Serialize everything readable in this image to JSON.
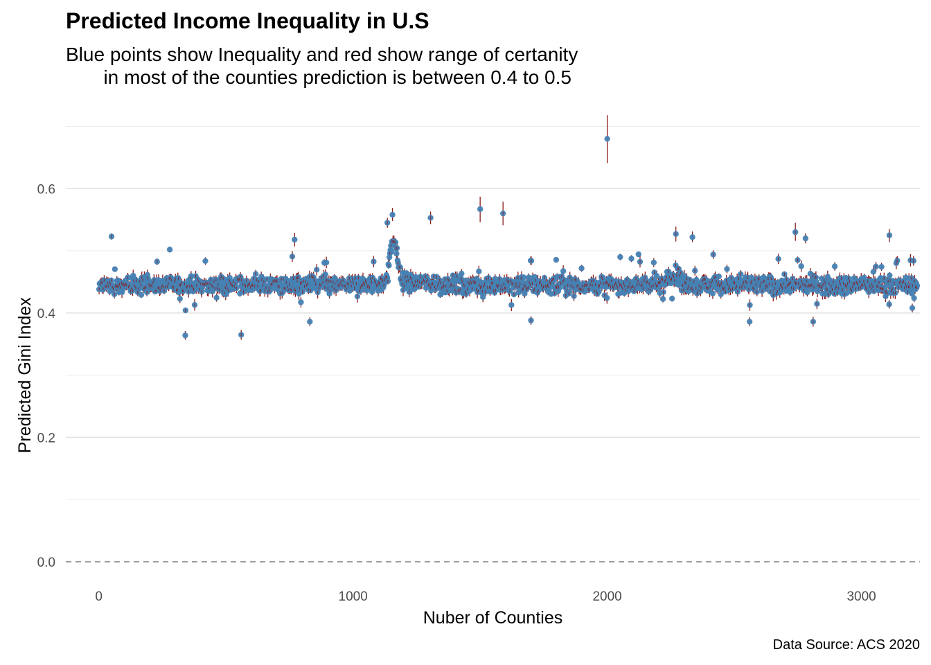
{
  "chart_data": {
    "type": "scatter",
    "title": "Predicted Income Inequality in U.S",
    "subtitle": "Blue points show Inequality and red show range of certanity\n       in most of the counties prediction is between 0.4 to 0.5",
    "caption": "Data Source: ACS 2020",
    "xlabel": "Nuber of Counties",
    "ylabel": "Predicted Gini Index",
    "xlim": [
      -130,
      3230
    ],
    "ylim": [
      -0.03,
      0.725
    ],
    "x_ticks": [
      0,
      1000,
      2000,
      3000
    ],
    "x_tick_labels": [
      "0",
      "1000",
      "2000",
      "3000"
    ],
    "y_ticks": [
      0.0,
      0.2,
      0.4,
      0.6
    ],
    "y_tick_labels": [
      "0.0",
      "0.2",
      "0.4",
      "0.6"
    ],
    "y_minor_ticks": [
      0.1,
      0.3,
      0.5,
      0.7
    ],
    "reference_line": {
      "y": 0.0,
      "style": "dashed"
    },
    "grid": true,
    "n_counties": 3220,
    "typical_range": [
      0.4,
      0.5
    ],
    "baseline_mean": 0.445,
    "point_color": "#4682b4",
    "interval_color": "#8b1a1a",
    "notable_points": [
      {
        "x": 50,
        "y": 0.523,
        "lo": 0.518,
        "hi": 0.528
      },
      {
        "x": 770,
        "y": 0.518,
        "lo": 0.507,
        "hi": 0.529
      },
      {
        "x": 1135,
        "y": 0.545,
        "lo": 0.537,
        "hi": 0.553
      },
      {
        "x": 1155,
        "y": 0.558,
        "lo": 0.548,
        "hi": 0.569
      },
      {
        "x": 1305,
        "y": 0.553,
        "lo": 0.543,
        "hi": 0.563
      },
      {
        "x": 1500,
        "y": 0.567,
        "lo": 0.546,
        "hi": 0.587
      },
      {
        "x": 1590,
        "y": 0.56,
        "lo": 0.541,
        "hi": 0.579
      },
      {
        "x": 2000,
        "y": 0.68,
        "lo": 0.641,
        "hi": 0.718
      },
      {
        "x": 2270,
        "y": 0.527,
        "lo": 0.515,
        "hi": 0.539
      },
      {
        "x": 2335,
        "y": 0.522,
        "lo": 0.514,
        "hi": 0.531
      },
      {
        "x": 2740,
        "y": 0.53,
        "lo": 0.516,
        "hi": 0.545
      },
      {
        "x": 2780,
        "y": 0.52,
        "lo": 0.512,
        "hi": 0.528
      },
      {
        "x": 3110,
        "y": 0.525,
        "lo": 0.514,
        "hi": 0.535
      },
      {
        "x": 340,
        "y": 0.364,
        "lo": 0.357,
        "hi": 0.371
      },
      {
        "x": 560,
        "y": 0.365,
        "lo": 0.357,
        "hi": 0.373
      },
      {
        "x": 830,
        "y": 0.386,
        "lo": 0.379,
        "hi": 0.393
      },
      {
        "x": 1700,
        "y": 0.388,
        "lo": 0.381,
        "hi": 0.395
      },
      {
        "x": 2560,
        "y": 0.386,
        "lo": 0.379,
        "hi": 0.393
      },
      {
        "x": 2810,
        "y": 0.386,
        "lo": 0.378,
        "hi": 0.394
      },
      {
        "x": 3200,
        "y": 0.408,
        "lo": 0.401,
        "hi": 0.415
      }
    ]
  }
}
